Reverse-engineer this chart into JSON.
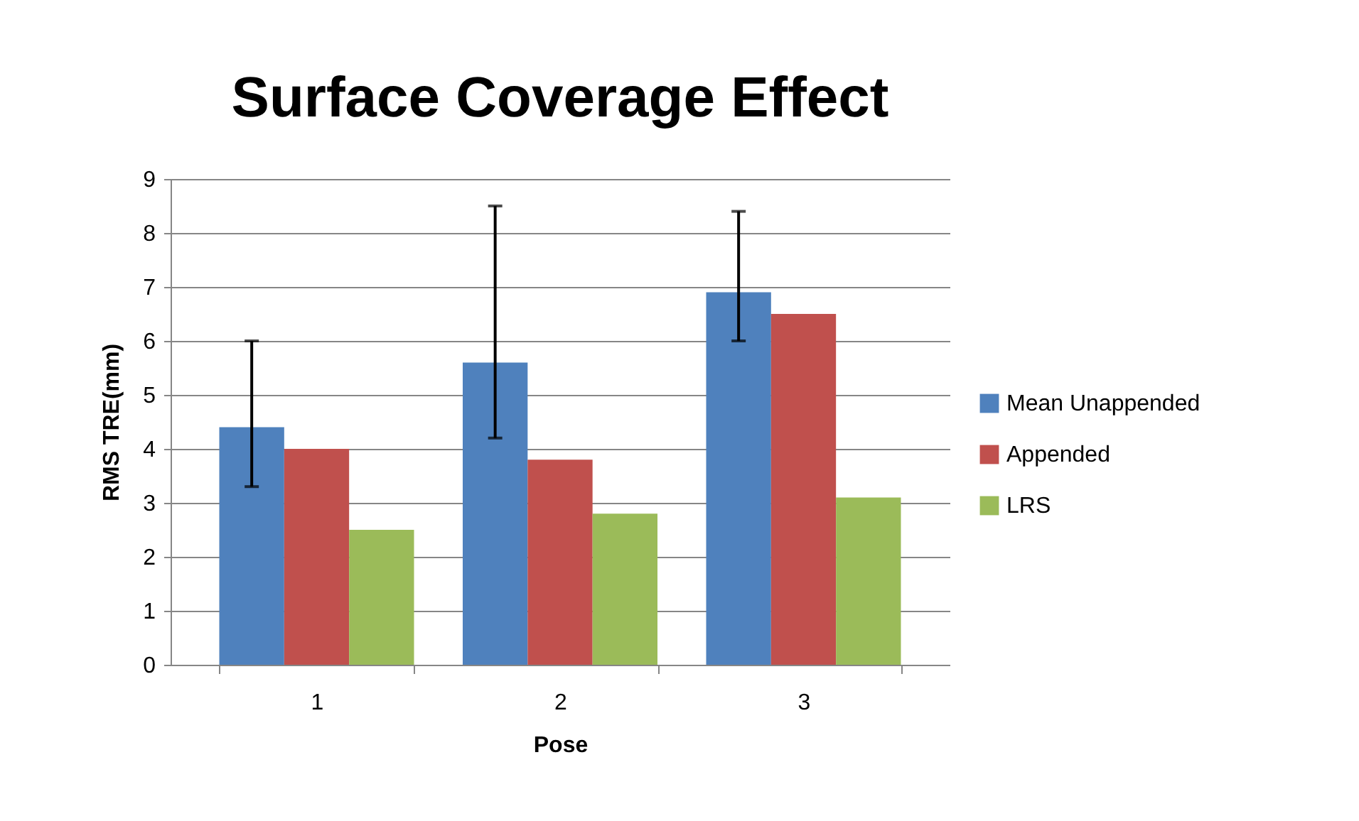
{
  "chart_data": {
    "type": "bar",
    "title": "Surface Coverage Effect",
    "xlabel": "Pose",
    "ylabel": "RMS TRE(mm)",
    "categories": [
      "1",
      "2",
      "3"
    ],
    "series": [
      {
        "name": "Mean Unappended",
        "color": "#4f81bd",
        "values": [
          4.4,
          5.6,
          6.9
        ],
        "errors": [
          [
            3.3,
            6.0
          ],
          [
            4.2,
            8.5
          ],
          [
            6.0,
            8.4
          ]
        ]
      },
      {
        "name": "Appended",
        "color": "#c0504d",
        "values": [
          4.0,
          3.8,
          6.5
        ]
      },
      {
        "name": "LRS",
        "color": "#9bbb59",
        "values": [
          2.5,
          2.8,
          3.1
        ]
      }
    ],
    "ylim": [
      0,
      9
    ],
    "yticks": [
      0,
      1,
      2,
      3,
      4,
      5,
      6,
      7,
      8,
      9
    ],
    "grid": "y",
    "legend": "right"
  }
}
